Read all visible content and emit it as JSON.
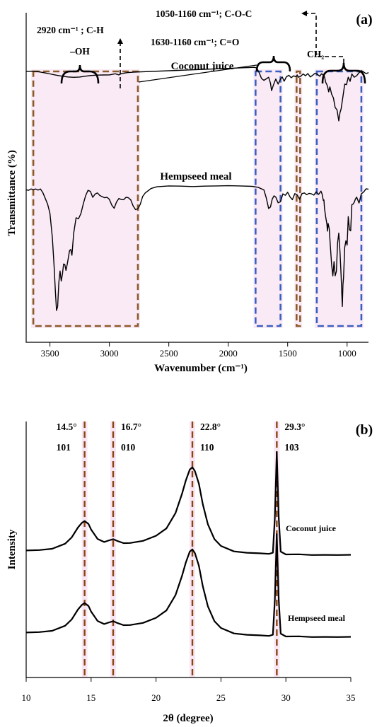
{
  "panels": {
    "a": {
      "label": "(a)"
    },
    "b": {
      "label": "(b)"
    }
  },
  "chart_data": [
    {
      "type": "line",
      "panel": "(a)",
      "xlabel": "Wavenumber (cm⁻¹)",
      "ylabel": "Transmittance (%)",
      "xlim": [
        3700,
        820
      ],
      "x_reversed": true,
      "xticks": [
        "3500",
        "3000",
        "2500",
        "2000",
        "1500",
        "1000"
      ],
      "series": [
        {
          "name": "Coconut juice",
          "x": [
            3700,
            3650,
            3600,
            3550,
            3500,
            3450,
            3400,
            3350,
            3300,
            3250,
            3200,
            3150,
            3100,
            3050,
            3000,
            2950,
            2920,
            2900,
            2850,
            2800,
            2750,
            1780,
            1760,
            1740,
            1720,
            1700,
            1680,
            1660,
            1645,
            1635,
            1620,
            1600,
            1580,
            1560,
            1545,
            1530,
            1510,
            1490,
            1470,
            1450,
            1430,
            1420,
            1410,
            1390,
            1370,
            1350,
            1330,
            1310,
            1290,
            1270,
            1250,
            1230,
            1215,
            1200,
            1190,
            1180,
            1165,
            1155,
            1145,
            1130,
            1115,
            1100,
            1085,
            1070,
            1060,
            1050,
            1035,
            1020,
            1005,
            990,
            975,
            960,
            940,
            920,
            900,
            880,
            860,
            840,
            820
          ],
          "y": [
            58.7,
            59.0,
            58.5,
            57.4,
            56.1,
            54.8,
            53.6,
            52.8,
            52.4,
            52.7,
            53.6,
            54.4,
            54.8,
            54.9,
            55.0,
            56.2,
            55.0,
            56.3,
            57.5,
            57.9,
            58.2,
            63.2,
            62.5,
            57.5,
            51.0,
            49.1,
            50.7,
            52.5,
            46.0,
            37.9,
            44.0,
            50.5,
            45.0,
            50.7,
            52.6,
            48.1,
            53.0,
            54.5,
            51.9,
            54.0,
            53.0,
            55.0,
            52.5,
            53.5,
            56.0,
            54.1,
            56.5,
            52.8,
            54.5,
            56.8,
            55.6,
            53.5,
            56.2,
            54.8,
            52.9,
            47.0,
            43.0,
            36.5,
            42.0,
            34.0,
            30.0,
            19.5,
            17.0,
            5.0,
            13.9,
            18.0,
            31.5,
            45.0,
            44.4,
            52.5,
            48.0,
            56.0,
            52.5,
            54.0,
            57.4,
            59.7,
            58.1,
            56.4,
            57.5
          ]
        },
        {
          "name": "Hempseed meal",
          "x": [
            3700,
            3680,
            3660,
            3640,
            3620,
            3600,
            3580,
            3560,
            3540,
            3520,
            3500,
            3480,
            3465,
            3455,
            3445,
            3435,
            3425,
            3415,
            3405,
            3395,
            3385,
            3375,
            3365,
            3355,
            3345,
            3335,
            3325,
            3315,
            3300,
            3280,
            3260,
            3240,
            3220,
            3200,
            3180,
            3160,
            3140,
            3120,
            3100,
            3080,
            3060,
            3040,
            3020,
            3000,
            2980,
            2960,
            2940,
            2920,
            2900,
            2880,
            2860,
            2840,
            2820,
            2800,
            2780,
            2760,
            2740,
            2720,
            2700,
            2650,
            2600,
            2500,
            2400,
            2300,
            2200,
            2100,
            2000,
            1900,
            1800,
            1750,
            1700,
            1680,
            1660,
            1645,
            1630,
            1615,
            1600,
            1580,
            1560,
            1540,
            1520,
            1500,
            1480,
            1460,
            1440,
            1420,
            1400,
            1380,
            1360,
            1340,
            1320,
            1300,
            1280,
            1260,
            1240,
            1220,
            1210,
            1200,
            1195,
            1190,
            1180,
            1170,
            1165,
            1160,
            1150,
            1140,
            1130,
            1120,
            1110,
            1100,
            1090,
            1080,
            1070,
            1060,
            1050,
            1040,
            1035,
            1030,
            1020,
            1010,
            1000,
            990,
            980,
            970,
            960,
            950,
            940,
            930,
            920,
            900,
            880,
            860,
            840,
            820
          ],
          "y": [
            17.2,
            17.0,
            17.6,
            17.3,
            17.6,
            17.1,
            17.6,
            16.0,
            13.4,
            10.7,
            6.5,
            -4.5,
            -17.6,
            -28.5,
            -37.8,
            -36.0,
            -25.0,
            -19.8,
            -24.4,
            -21.2,
            -16.6,
            -16.8,
            -19.5,
            -16.8,
            -13.7,
            -10.5,
            -10.0,
            -12.6,
            -2.5,
            4.5,
            4.0,
            6.3,
            10.7,
            14.5,
            17.0,
            16.5,
            13.8,
            15.3,
            15.8,
            14.6,
            14.1,
            13.6,
            13.8,
            12.9,
            10.3,
            8.8,
            11.6,
            13.3,
            12.8,
            12.7,
            13.8,
            13.6,
            12.6,
            9.8,
            8.2,
            8.6,
            10.6,
            14.2,
            15.7,
            17.8,
            18.6,
            19.0,
            18.9,
            18.7,
            18.9,
            19.0,
            19.1,
            19.0,
            18.8,
            18.4,
            17.2,
            13.5,
            8.7,
            9.4,
            13.0,
            14.5,
            13.9,
            11.3,
            11.8,
            15.4,
            14.7,
            16.1,
            14.0,
            12.7,
            15.5,
            14.9,
            12.9,
            15.5,
            15.8,
            15.0,
            15.6,
            15.4,
            14.8,
            16.3,
            15.1,
            16.6,
            15.2,
            12.4,
            12.6,
            8.8,
            4.8,
            1.6,
            -1.6,
            1.9,
            -0.5,
            -9.0,
            -17.0,
            -22.0,
            -15.5,
            -22.0,
            -20.0,
            -7.0,
            -2.5,
            -11.0,
            -22.0,
            -36.0,
            -26.0,
            -23.0,
            -9.0,
            -6.0,
            -8.0,
            5.0,
            -1.0,
            -1.5,
            10.5,
            10.7,
            11.5,
            13.0,
            13.9,
            11.2,
            15.4,
            16.3,
            17.7,
            17.5
          ]
        }
      ],
      "annotations": [
        {
          "text": "–OH"
        },
        {
          "text": "2920 cm⁻¹ ; C-H"
        },
        {
          "text": "1050-1160 cm⁻¹; C-O-C"
        },
        {
          "text": "1630-1160 cm⁻¹; C=O"
        },
        {
          "text": "CH₂"
        }
      ],
      "highlight_bands": [
        {
          "from": 3640,
          "to": 2760,
          "color": "#8B5A2B"
        },
        {
          "from": 1770,
          "to": 1560,
          "color": "#3B5FC0"
        },
        {
          "from": 1425,
          "to": 1395,
          "color": "#8B5A2B"
        },
        {
          "from": 1255,
          "to": 880,
          "color": "#3B5FC0"
        }
      ]
    },
    {
      "type": "line",
      "panel": "(b)",
      "xlabel": "2θ (degree)",
      "ylabel": "Intensity",
      "xlim": [
        10,
        35
      ],
      "xticks": [
        "10",
        "15",
        "20",
        "25",
        "30",
        "35"
      ],
      "series": [
        {
          "name": "Coconut juice",
          "x": [
            10,
            11,
            12,
            13,
            13.5,
            14,
            14.3,
            14.5,
            14.8,
            15.0,
            15.5,
            16.0,
            16.4,
            16.7,
            17.0,
            17.5,
            18,
            19,
            20,
            20.8,
            21.5,
            22.0,
            22.3,
            22.6,
            22.8,
            23.0,
            23.3,
            23.6,
            24.0,
            24.5,
            25,
            26,
            27,
            28,
            28.7,
            29.0,
            29.15,
            29.3,
            29.45,
            29.6,
            30,
            31,
            32,
            33,
            34,
            35
          ],
          "y": [
            11.0,
            11.4,
            12.5,
            17.0,
            22.5,
            31.5,
            35.5,
            37.0,
            34.5,
            29.5,
            21.2,
            18.5,
            20.0,
            21.0,
            19.5,
            17.5,
            17.6,
            19.5,
            24.0,
            30.5,
            44.0,
            61.0,
            73.0,
            82.5,
            84.5,
            81.0,
            70.0,
            52.0,
            34.0,
            21.0,
            15.0,
            10.2,
            9.0,
            8.5,
            8.0,
            9.0,
            40.0,
            98.0,
            40.0,
            10.0,
            7.5,
            7.6,
            7.0,
            7.1,
            7.0,
            7.2
          ]
        },
        {
          "name": "Hempseed meal",
          "x": [
            10,
            11,
            12,
            13,
            13.5,
            14,
            14.3,
            14.5,
            14.8,
            15.0,
            15.5,
            16.0,
            16.4,
            16.7,
            17.0,
            17.5,
            18,
            19,
            20,
            20.8,
            21.5,
            22.0,
            22.3,
            22.6,
            22.8,
            23.0,
            23.3,
            23.6,
            24.0,
            24.5,
            25,
            26,
            27,
            28,
            28.7,
            29.0,
            29.15,
            29.3,
            29.45,
            29.6,
            30,
            31,
            32,
            33,
            34,
            35
          ],
          "y": [
            11.0,
            11.4,
            12.5,
            17.0,
            22.5,
            31.5,
            35.5,
            37.0,
            34.5,
            29.5,
            21.2,
            18.5,
            20.0,
            21.0,
            19.5,
            17.5,
            17.6,
            19.5,
            24.0,
            30.5,
            44.0,
            61.0,
            73.0,
            82.5,
            84.5,
            81.0,
            70.0,
            52.0,
            34.0,
            21.0,
            15.0,
            10.2,
            9.0,
            8.5,
            8.0,
            9.0,
            40.0,
            98.0,
            40.0,
            10.0,
            7.5,
            7.6,
            7.0,
            7.1,
            7.0,
            7.2
          ]
        }
      ],
      "peaks": [
        {
          "angle": "14.5°",
          "plane": "101",
          "x": 14.5
        },
        {
          "angle": "16.7°",
          "plane": "010",
          "x": 16.7
        },
        {
          "angle": "22.8°",
          "plane": "110",
          "x": 22.8
        },
        {
          "angle": "29.3°",
          "plane": "103",
          "x": 29.3
        }
      ]
    }
  ]
}
